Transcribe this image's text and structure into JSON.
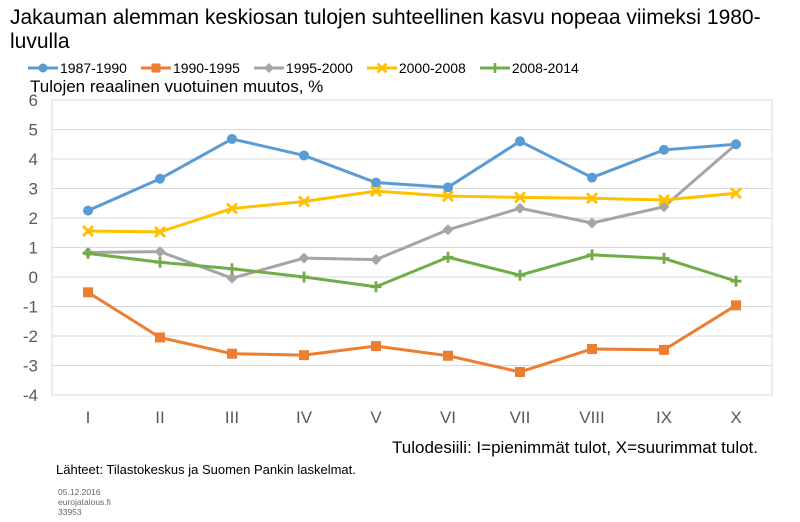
{
  "title": "Jakauman alemman keskiosan tulojen suhteellinen kasvu nopeaa viimeksi 1980-luvulla",
  "source": "Lähteet: Tilastokeskus ja Suomen Pankin laskelmat.",
  "footer": {
    "date": "05.12.2016",
    "site": "eurojatalous.fi",
    "id": "33953"
  },
  "chart_data": {
    "type": "line",
    "ylabel": "Tulojen reaalinen vuotuinen muutos, %",
    "xlabel": "Tulodesiili: I=pienimmät tulot, X=suurimmat tulot.",
    "ylim": [
      -4,
      6
    ],
    "yticks": [
      "6",
      "5",
      "4",
      "3",
      "2",
      "1",
      "0",
      "-1",
      "-2",
      "-3",
      "-4"
    ],
    "categories": [
      "I",
      "II",
      "III",
      "IV",
      "V",
      "VI",
      "VII",
      "VIII",
      "IX",
      "X"
    ],
    "grid": true,
    "legend": "top",
    "series": [
      {
        "name": "1987-1990",
        "color": "#5b9bd5",
        "marker": "circle",
        "values": [
          2.25,
          3.33,
          4.68,
          4.12,
          3.2,
          3.04,
          4.6,
          3.37,
          4.31,
          4.5
        ]
      },
      {
        "name": "1990-1995",
        "color": "#ed7d31",
        "marker": "square",
        "values": [
          -0.52,
          -2.05,
          -2.6,
          -2.65,
          -2.34,
          -2.67,
          -3.22,
          -2.44,
          -2.47,
          -0.96
        ]
      },
      {
        "name": "1995-2000",
        "color": "#a5a5a5",
        "marker": "diamond",
        "values": [
          0.83,
          0.86,
          -0.04,
          0.64,
          0.59,
          1.6,
          2.33,
          1.83,
          2.38,
          4.5
        ]
      },
      {
        "name": "2000-2008",
        "color": "#ffc000",
        "marker": "x",
        "values": [
          1.56,
          1.53,
          2.32,
          2.56,
          2.91,
          2.74,
          2.7,
          2.67,
          2.61,
          2.84
        ]
      },
      {
        "name": "2008-2014",
        "color": "#70ad47",
        "marker": "plus",
        "values": [
          0.8,
          0.5,
          0.28,
          0.0,
          -0.33,
          0.67,
          0.06,
          0.75,
          0.63,
          -0.14
        ]
      }
    ]
  }
}
